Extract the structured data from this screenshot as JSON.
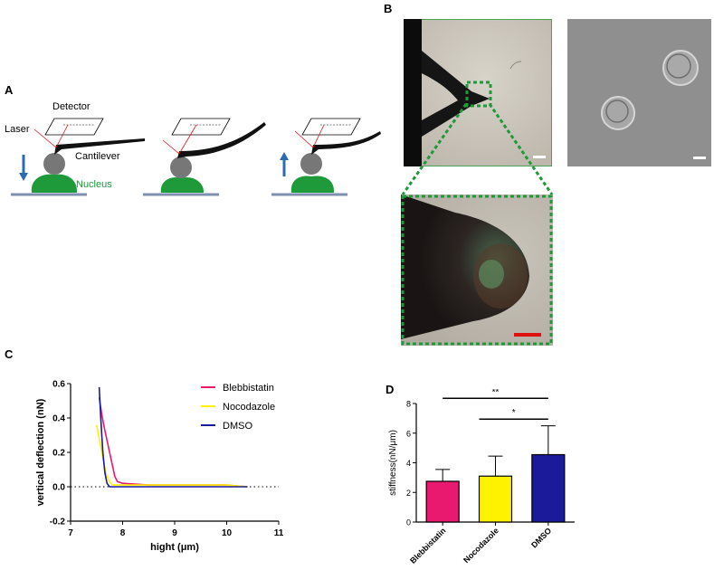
{
  "panels": {
    "a": "A",
    "b": "B",
    "c": "C",
    "d": "D"
  },
  "panel_a": {
    "detector": "Detector",
    "laser": "Laser",
    "cantilever": "Cantilever",
    "nucleus": "Nucleus"
  },
  "colors": {
    "blebbistatin": "#e8196e",
    "nocodazole": "#fff200",
    "dmso": "#1a1a9a",
    "nucleus": "#1e9a3a",
    "zoom_box": "#1e9a3a",
    "scale_bar_red": "#e01010",
    "arrow": "#2b6cb0"
  },
  "chart_data": [
    {
      "type": "line",
      "title": "",
      "xlabel": "hight (μm)",
      "ylabel": "vertical deflection (nN)",
      "xlim": [
        7,
        11
      ],
      "ylim": [
        -0.2,
        0.6
      ],
      "x_ticks": [
        "7",
        "8",
        "9",
        "10",
        "11"
      ],
      "y_ticks": [
        "-0.2",
        "0.0",
        "0.2",
        "0.4",
        "0.6"
      ],
      "zero_line": "dotted",
      "legend_position": "top-right",
      "series": [
        {
          "name": "Blebbistatin",
          "x": [
            7.55,
            7.6,
            7.65,
            7.7,
            7.75,
            7.8,
            7.85,
            7.9,
            8.0,
            8.5,
            9.0,
            9.5,
            10.0,
            10.4
          ],
          "y": [
            0.52,
            0.42,
            0.34,
            0.27,
            0.2,
            0.13,
            0.06,
            0.03,
            0.02,
            0.01,
            0.01,
            0.01,
            0.01,
            0.0
          ]
        },
        {
          "name": "Nocodazole",
          "x": [
            7.5,
            7.55,
            7.6,
            7.65,
            7.7,
            7.75,
            7.8,
            8.0,
            8.5,
            9.0,
            9.5,
            10.0,
            10.4
          ],
          "y": [
            0.36,
            0.28,
            0.2,
            0.12,
            0.06,
            0.03,
            0.01,
            0.01,
            0.01,
            0.01,
            0.01,
            0.01,
            0.0
          ]
        },
        {
          "name": "DMSO",
          "x": [
            7.55,
            7.58,
            7.62,
            7.66,
            7.7,
            7.75,
            8.0,
            8.5,
            9.0,
            9.5,
            10.0,
            10.4
          ],
          "y": [
            0.58,
            0.4,
            0.2,
            0.08,
            0.02,
            0.0,
            0.0,
            0.0,
            0.0,
            0.0,
            0.0,
            0.0
          ]
        }
      ]
    },
    {
      "type": "bar",
      "title": "",
      "xlabel": "",
      "ylabel": "stiffness(nN/μm)",
      "ylim": [
        0,
        8
      ],
      "y_ticks": [
        "0",
        "2",
        "4",
        "6",
        "8"
      ],
      "categories": [
        "Blebbistatin",
        "Nocodazole",
        "DMSO"
      ],
      "values": [
        2.75,
        3.1,
        4.55
      ],
      "errors": [
        0.8,
        1.35,
        1.95
      ],
      "significance": [
        {
          "from": "Blebbistatin",
          "to": "DMSO",
          "label": "**"
        },
        {
          "from": "Nocodazole",
          "to": "DMSO",
          "label": "*"
        }
      ]
    }
  ]
}
